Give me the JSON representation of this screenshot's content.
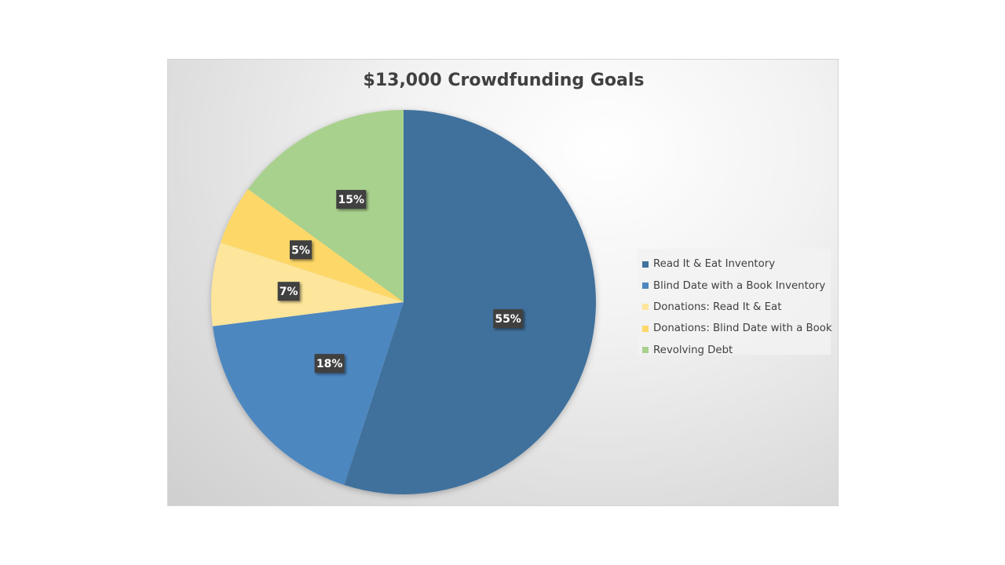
{
  "chart_data": {
    "type": "pie",
    "title": "$13,000 Crowdfunding Goals",
    "categories": [
      "Read It & Eat Inventory",
      "Blind Date with a Book Inventory",
      "Donations: Read It & Eat",
      "Donations: Blind Date with a Book",
      "Revolving Debt"
    ],
    "values": [
      55,
      18,
      7,
      5,
      15
    ],
    "data_labels": [
      "55%",
      "18%",
      "7%",
      "5%",
      "15%"
    ],
    "colors": [
      "#41719c",
      "#4e87c0",
      "#fde59b",
      "#fdd868",
      "#a9d18e"
    ],
    "legend_position": "right"
  }
}
